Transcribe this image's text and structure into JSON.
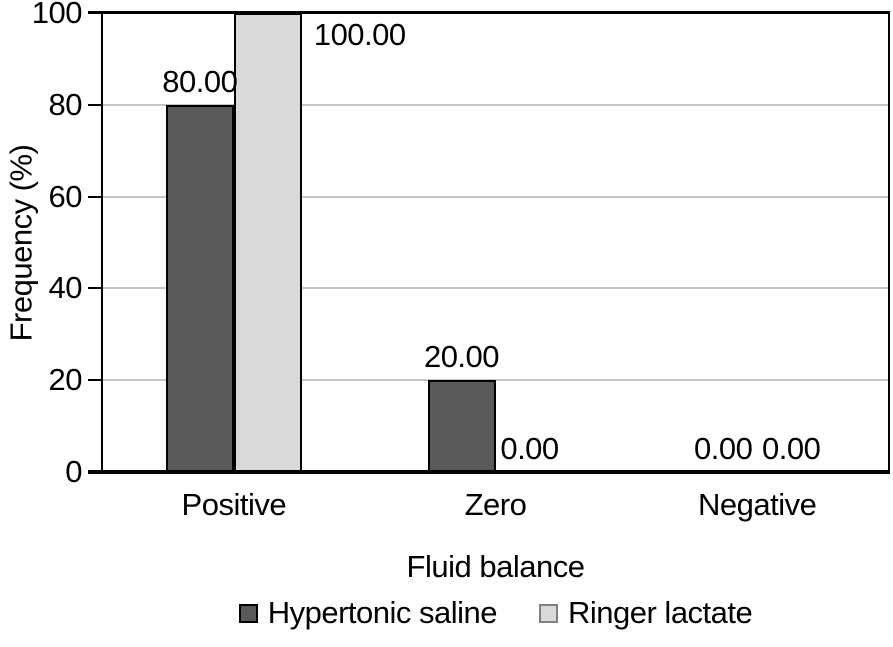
{
  "figure": {
    "background": "#ffffff",
    "text_color": "#000000"
  },
  "chart_data": {
    "type": "bar",
    "title": "",
    "xlabel": "Fluid balance",
    "ylabel": "Frequency (%)",
    "categories": [
      "Positive",
      "Zero",
      "Negative"
    ],
    "series": [
      {
        "name": "Hypertonic saline",
        "color": "#595959",
        "border_color": "#000000",
        "swatch_border": "#000000",
        "values": [
          80,
          20,
          0
        ],
        "value_labels": [
          "80.00",
          "20.00",
          "0.00"
        ]
      },
      {
        "name": "Ringer lactate",
        "color": "#d9d9d9",
        "border_color": "#000000",
        "swatch_border": "#808080",
        "values": [
          100,
          0,
          0
        ],
        "value_labels": [
          "100.00",
          "0.00",
          "0.00"
        ]
      }
    ],
    "ylim": [
      0,
      100
    ],
    "ytick_labels": [
      "0",
      "20",
      "40",
      "60",
      "80",
      "100"
    ],
    "grid": true,
    "gridline_color": "#c6c6c6",
    "axis_color": "#000000",
    "legend_position": "bottom"
  }
}
